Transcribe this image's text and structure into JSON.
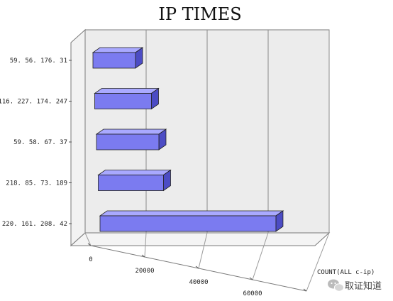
{
  "chart_data": {
    "type": "bar",
    "orientation": "horizontal",
    "style": "3d",
    "title": "IP TIMES",
    "xlabel": "COUNT(ALL c-ip)",
    "ylabel": "",
    "categories": [
      "59.56.176.31",
      "116.227.174.247",
      "59.58.67.37",
      "218.85.73.189",
      "220.161.208.42"
    ],
    "category_labels": [
      "59. 56. 176. 31",
      "116. 227. 174. 247",
      "59. 58. 67. 37",
      "218. 85. 73. 189",
      "220. 161. 208. 42"
    ],
    "values": [
      15000,
      20000,
      22000,
      23000,
      62000
    ],
    "xlim": [
      0,
      80000
    ],
    "xticks": [
      "0",
      "20000",
      "40000",
      "60000",
      "80000"
    ],
    "grid": true,
    "legend": "none",
    "bar_color": "#7b7bf0"
  },
  "watermark": {
    "text": "取证知道",
    "icon": "wechat-logo-icon"
  }
}
